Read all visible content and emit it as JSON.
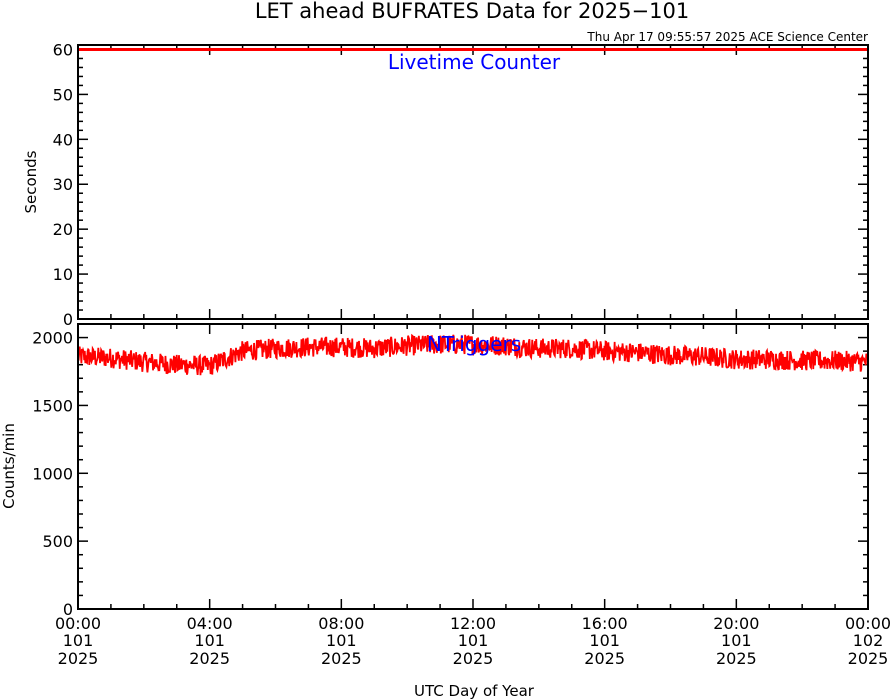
{
  "title": "LET ahead BUFRATES Data for 2025−101",
  "timestamp": "Thu Apr 17 09:55:57 2025 ACE Science Center",
  "xlabel": "UTC Day of Year",
  "x_ticks": [
    {
      "time": "00:00",
      "doy": "101",
      "year": "2025"
    },
    {
      "time": "04:00",
      "doy": "101",
      "year": "2025"
    },
    {
      "time": "08:00",
      "doy": "101",
      "year": "2025"
    },
    {
      "time": "12:00",
      "doy": "101",
      "year": "2025"
    },
    {
      "time": "16:00",
      "doy": "101",
      "year": "2025"
    },
    {
      "time": "20:00",
      "doy": "101",
      "year": "2025"
    },
    {
      "time": "00:00",
      "doy": "102",
      "year": "2025"
    }
  ],
  "colors": {
    "series": "#ff0000",
    "label": "#0000ff",
    "axes": "#000000"
  },
  "chart_data": [
    {
      "type": "line",
      "panel": "top",
      "series_label": "Livetime Counter",
      "ylabel": "Seconds",
      "ylim": [
        0,
        61
      ],
      "yticks": [
        0,
        10,
        20,
        30,
        40,
        50,
        60
      ],
      "xlim_hours": [
        0,
        24
      ],
      "series": [
        {
          "x_hours": [
            0,
            24
          ],
          "values": [
            60,
            60
          ]
        }
      ]
    },
    {
      "type": "line",
      "panel": "bottom",
      "series_label": "NTriggers",
      "ylabel": "Counts/min",
      "ylim": [
        0,
        2100
      ],
      "yticks": [
        0,
        500,
        1000,
        1500,
        2000
      ],
      "xlim_hours": [
        0,
        24
      ],
      "series": [
        {
          "x_hours": [
            0,
            1,
            2,
            3,
            4,
            5,
            6,
            7,
            8,
            9,
            10,
            11,
            12,
            13,
            14,
            15,
            16,
            17,
            18,
            19,
            20,
            21,
            22,
            23,
            24
          ],
          "values": [
            1860,
            1850,
            1820,
            1800,
            1790,
            1900,
            1920,
            1930,
            1930,
            1920,
            1940,
            1950,
            1950,
            1940,
            1920,
            1920,
            1900,
            1890,
            1870,
            1860,
            1840,
            1840,
            1830,
            1830,
            1820
          ]
        }
      ]
    }
  ]
}
